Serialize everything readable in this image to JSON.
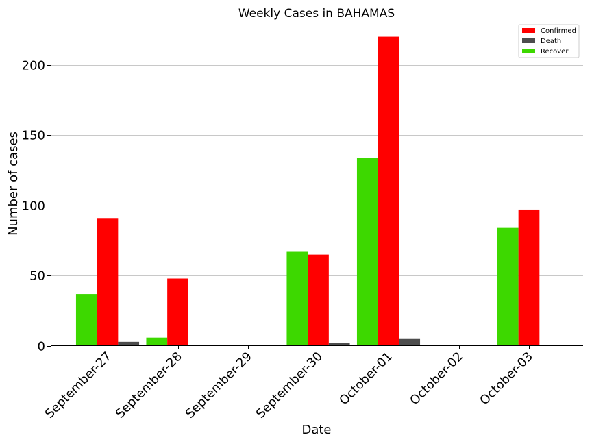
{
  "chart_data": {
    "type": "bar",
    "title": "Weekly Cases in BAHAMAS",
    "xlabel": "Date",
    "ylabel": "Number of cases",
    "categories": [
      "September-27",
      "September-28",
      "September-29",
      "September-30",
      "October-01",
      "October-02",
      "October-03"
    ],
    "series": [
      {
        "name": "Recover",
        "color": "#3dd800",
        "values": [
          37,
          6,
          0,
          67,
          134,
          0,
          84
        ]
      },
      {
        "name": "Confirmed",
        "color": "#ff0000",
        "values": [
          91,
          48,
          0,
          65,
          220,
          0,
          97
        ]
      },
      {
        "name": "Death",
        "color": "#4d4d4d",
        "values": [
          3,
          0,
          0,
          2,
          5,
          0,
          0
        ]
      }
    ],
    "legend_order": [
      "Confirmed",
      "Death",
      "Recover"
    ],
    "legend_position": "top-right",
    "ylim": [
      0,
      231
    ],
    "yticks": [
      0,
      50,
      100,
      150,
      200
    ],
    "grid": "y"
  }
}
